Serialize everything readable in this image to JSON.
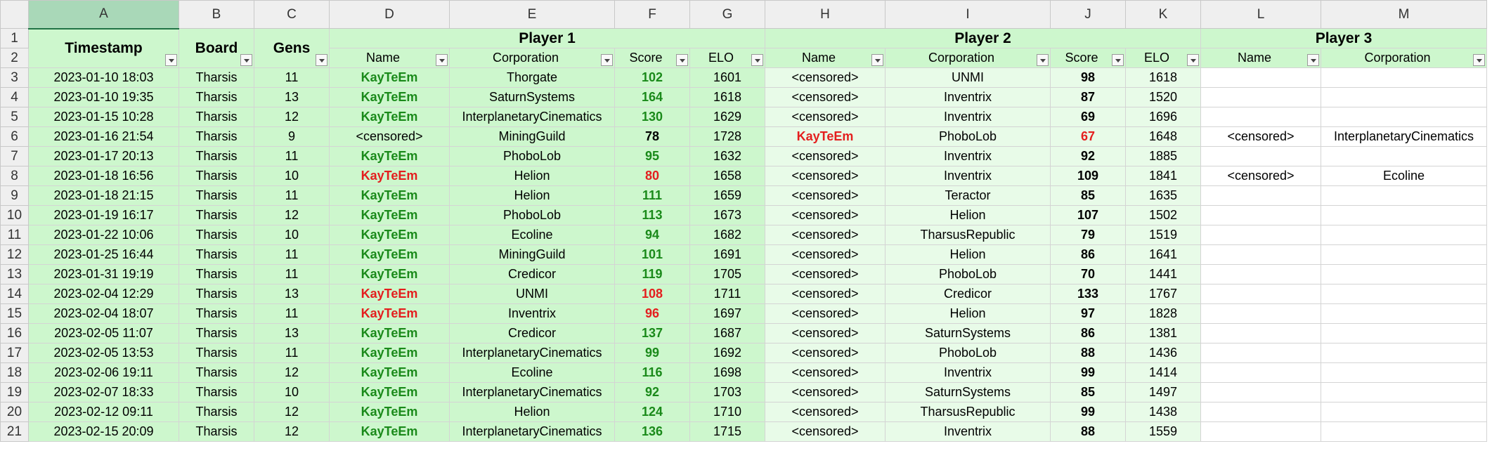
{
  "column_letters": [
    "A",
    "B",
    "C",
    "D",
    "E",
    "F",
    "G",
    "H",
    "I",
    "J",
    "K",
    "L",
    "M"
  ],
  "row_numbers": [
    "1",
    "2",
    "3",
    "4",
    "5",
    "6",
    "7",
    "8",
    "9",
    "10",
    "11",
    "12",
    "13",
    "14",
    "15",
    "16",
    "17",
    "18",
    "19",
    "20",
    "21"
  ],
  "headers": {
    "timestamp": "Timestamp",
    "board": "Board",
    "gens": "Gens",
    "player1": "Player 1",
    "player2": "Player 2",
    "player3": "Player 3",
    "name": "Name",
    "corporation": "Corporation",
    "score": "Score",
    "elo": "ELO"
  },
  "rows": [
    {
      "ts": "2023-01-10 18:03",
      "board": "Tharsis",
      "gens": "11",
      "p1name": "KayTeEm",
      "p1corp": "Thorgate",
      "p1score": "102",
      "p1elo": "1601",
      "p2name": "<censored>",
      "p2corp": "UNMI",
      "p2score": "98",
      "p2elo": "1618",
      "p3name": "",
      "p3corp": "",
      "p1": "green",
      "p2": "plain"
    },
    {
      "ts": "2023-01-10 19:35",
      "board": "Tharsis",
      "gens": "13",
      "p1name": "KayTeEm",
      "p1corp": "SaturnSystems",
      "p1score": "164",
      "p1elo": "1618",
      "p2name": "<censored>",
      "p2corp": "Inventrix",
      "p2score": "87",
      "p2elo": "1520",
      "p3name": "",
      "p3corp": "",
      "p1": "green",
      "p2": "plain"
    },
    {
      "ts": "2023-01-15 10:28",
      "board": "Tharsis",
      "gens": "12",
      "p1name": "KayTeEm",
      "p1corp": "InterplanetaryCinematics",
      "p1score": "130",
      "p1elo": "1629",
      "p2name": "<censored>",
      "p2corp": "Inventrix",
      "p2score": "69",
      "p2elo": "1696",
      "p3name": "",
      "p3corp": "",
      "p1": "green",
      "p2": "plain"
    },
    {
      "ts": "2023-01-16 21:54",
      "board": "Tharsis",
      "gens": "9",
      "p1name": "<censored>",
      "p1corp": "MiningGuild",
      "p1score": "78",
      "p1elo": "1728",
      "p2name": "KayTeEm",
      "p2corp": "PhoboLob",
      "p2score": "67",
      "p2elo": "1648",
      "p3name": "<censored>",
      "p3corp": "InterplanetaryCinematics",
      "p1": "plain",
      "p2": "red"
    },
    {
      "ts": "2023-01-17 20:13",
      "board": "Tharsis",
      "gens": "11",
      "p1name": "KayTeEm",
      "p1corp": "PhoboLob",
      "p1score": "95",
      "p1elo": "1632",
      "p2name": "<censored>",
      "p2corp": "Inventrix",
      "p2score": "92",
      "p2elo": "1885",
      "p3name": "",
      "p3corp": "",
      "p1": "green",
      "p2": "plain"
    },
    {
      "ts": "2023-01-18 16:56",
      "board": "Tharsis",
      "gens": "10",
      "p1name": "KayTeEm",
      "p1corp": "Helion",
      "p1score": "80",
      "p1elo": "1658",
      "p2name": "<censored>",
      "p2corp": "Inventrix",
      "p2score": "109",
      "p2elo": "1841",
      "p3name": "<censored>",
      "p3corp": "Ecoline",
      "p1": "red",
      "p2": "plain"
    },
    {
      "ts": "2023-01-18 21:15",
      "board": "Tharsis",
      "gens": "11",
      "p1name": "KayTeEm",
      "p1corp": "Helion",
      "p1score": "111",
      "p1elo": "1659",
      "p2name": "<censored>",
      "p2corp": "Teractor",
      "p2score": "85",
      "p2elo": "1635",
      "p3name": "",
      "p3corp": "",
      "p1": "green",
      "p2": "plain"
    },
    {
      "ts": "2023-01-19 16:17",
      "board": "Tharsis",
      "gens": "12",
      "p1name": "KayTeEm",
      "p1corp": "PhoboLob",
      "p1score": "113",
      "p1elo": "1673",
      "p2name": "<censored>",
      "p2corp": "Helion",
      "p2score": "107",
      "p2elo": "1502",
      "p3name": "",
      "p3corp": "",
      "p1": "green",
      "p2": "plain"
    },
    {
      "ts": "2023-01-22 10:06",
      "board": "Tharsis",
      "gens": "10",
      "p1name": "KayTeEm",
      "p1corp": "Ecoline",
      "p1score": "94",
      "p1elo": "1682",
      "p2name": "<censored>",
      "p2corp": "TharsusRepublic",
      "p2score": "79",
      "p2elo": "1519",
      "p3name": "",
      "p3corp": "",
      "p1": "green",
      "p2": "plain"
    },
    {
      "ts": "2023-01-25 16:44",
      "board": "Tharsis",
      "gens": "11",
      "p1name": "KayTeEm",
      "p1corp": "MiningGuild",
      "p1score": "101",
      "p1elo": "1691",
      "p2name": "<censored>",
      "p2corp": "Helion",
      "p2score": "86",
      "p2elo": "1641",
      "p3name": "",
      "p3corp": "",
      "p1": "green",
      "p2": "plain"
    },
    {
      "ts": "2023-01-31 19:19",
      "board": "Tharsis",
      "gens": "11",
      "p1name": "KayTeEm",
      "p1corp": "Credicor",
      "p1score": "119",
      "p1elo": "1705",
      "p2name": "<censored>",
      "p2corp": "PhoboLob",
      "p2score": "70",
      "p2elo": "1441",
      "p3name": "",
      "p3corp": "",
      "p1": "green",
      "p2": "plain"
    },
    {
      "ts": "2023-02-04 12:29",
      "board": "Tharsis",
      "gens": "13",
      "p1name": "KayTeEm",
      "p1corp": "UNMI",
      "p1score": "108",
      "p1elo": "1711",
      "p2name": "<censored>",
      "p2corp": "Credicor",
      "p2score": "133",
      "p2elo": "1767",
      "p3name": "",
      "p3corp": "",
      "p1": "red",
      "p2": "plain"
    },
    {
      "ts": "2023-02-04 18:07",
      "board": "Tharsis",
      "gens": "11",
      "p1name": "KayTeEm",
      "p1corp": "Inventrix",
      "p1score": "96",
      "p1elo": "1697",
      "p2name": "<censored>",
      "p2corp": "Helion",
      "p2score": "97",
      "p2elo": "1828",
      "p3name": "",
      "p3corp": "",
      "p1": "red",
      "p2": "plain"
    },
    {
      "ts": "2023-02-05 11:07",
      "board": "Tharsis",
      "gens": "13",
      "p1name": "KayTeEm",
      "p1corp": "Credicor",
      "p1score": "137",
      "p1elo": "1687",
      "p2name": "<censored>",
      "p2corp": "SaturnSystems",
      "p2score": "86",
      "p2elo": "1381",
      "p3name": "",
      "p3corp": "",
      "p1": "green",
      "p2": "plain"
    },
    {
      "ts": "2023-02-05 13:53",
      "board": "Tharsis",
      "gens": "11",
      "p1name": "KayTeEm",
      "p1corp": "InterplanetaryCinematics",
      "p1score": "99",
      "p1elo": "1692",
      "p2name": "<censored>",
      "p2corp": "PhoboLob",
      "p2score": "88",
      "p2elo": "1436",
      "p3name": "",
      "p3corp": "",
      "p1": "green",
      "p2": "plain"
    },
    {
      "ts": "2023-02-06 19:11",
      "board": "Tharsis",
      "gens": "12",
      "p1name": "KayTeEm",
      "p1corp": "Ecoline",
      "p1score": "116",
      "p1elo": "1698",
      "p2name": "<censored>",
      "p2corp": "Inventrix",
      "p2score": "99",
      "p2elo": "1414",
      "p3name": "",
      "p3corp": "",
      "p1": "green",
      "p2": "plain"
    },
    {
      "ts": "2023-02-07 18:33",
      "board": "Tharsis",
      "gens": "10",
      "p1name": "KayTeEm",
      "p1corp": "InterplanetaryCinematics",
      "p1score": "92",
      "p1elo": "1703",
      "p2name": "<censored>",
      "p2corp": "SaturnSystems",
      "p2score": "85",
      "p2elo": "1497",
      "p3name": "",
      "p3corp": "",
      "p1": "green",
      "p2": "plain"
    },
    {
      "ts": "2023-02-12 09:11",
      "board": "Tharsis",
      "gens": "12",
      "p1name": "KayTeEm",
      "p1corp": "Helion",
      "p1score": "124",
      "p1elo": "1710",
      "p2name": "<censored>",
      "p2corp": "TharsusRepublic",
      "p2score": "99",
      "p2elo": "1438",
      "p3name": "",
      "p3corp": "",
      "p1": "green",
      "p2": "plain"
    },
    {
      "ts": "2023-02-15 20:09",
      "board": "Tharsis",
      "gens": "12",
      "p1name": "KayTeEm",
      "p1corp": "InterplanetaryCinematics",
      "p1score": "136",
      "p1elo": "1715",
      "p2name": "<censored>",
      "p2corp": "Inventrix",
      "p2score": "88",
      "p2elo": "1559",
      "p3name": "",
      "p3corp": "",
      "p1": "green",
      "p2": "plain"
    }
  ],
  "colors": {
    "header_bg": "#cdf7cd",
    "win_text": "#1a8a1a",
    "loss_text": "#e41e1e",
    "selected_col_header": "#a9d8b8"
  }
}
